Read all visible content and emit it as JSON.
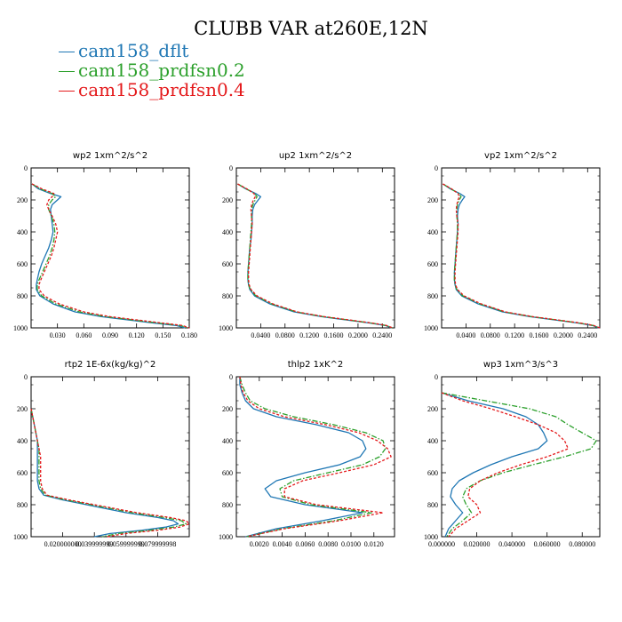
{
  "title": "CLUBB VAR at260E,12N",
  "colors": {
    "cam158_dflt": "#1f77b4",
    "cam158_prdfsn0.2": "#2ca02c",
    "cam158_prdfsn0.4": "#e41a1c"
  },
  "legend": [
    {
      "label": "cam158_dflt",
      "color": "#1f77b4",
      "dash": "solid"
    },
    {
      "label": "cam158_prdfsn0.2",
      "color": "#2ca02c",
      "dash": "dashdot"
    },
    {
      "label": "cam158_prdfsn0.4",
      "color": "#e41a1c",
      "dash": "dashed"
    }
  ],
  "chart_data": [
    {
      "type": "line",
      "title": "wp2 1xm^2/s^2",
      "xlim": [
        0,
        0.18
      ],
      "ylim": [
        1000,
        0
      ],
      "xticks": [
        "0.030",
        "0.060",
        "0.090",
        "0.120",
        "0.150",
        "0.180"
      ],
      "xtick_values": [
        0.03,
        0.06,
        0.09,
        0.12,
        0.15,
        0.18
      ],
      "yticks": [
        "0",
        "200",
        "400",
        "600",
        "800",
        "1000"
      ],
      "y": [
        100,
        130,
        160,
        180,
        200,
        230,
        260,
        300,
        350,
        400,
        450,
        500,
        550,
        600,
        650,
        700,
        730,
        760,
        800,
        850,
        900,
        930,
        950,
        970,
        985,
        1000
      ],
      "series": [
        {
          "name": "cam158_dflt",
          "x": [
            0.001,
            0.008,
            0.022,
            0.034,
            0.03,
            0.024,
            0.022,
            0.023,
            0.024,
            0.025,
            0.023,
            0.02,
            0.016,
            0.012,
            0.009,
            0.007,
            0.006,
            0.006,
            0.01,
            0.025,
            0.05,
            0.08,
            0.11,
            0.14,
            0.165,
            0.175
          ]
        },
        {
          "name": "cam158_prdfsn0.2",
          "x": [
            0.001,
            0.01,
            0.024,
            0.028,
            0.024,
            0.02,
            0.02,
            0.023,
            0.026,
            0.027,
            0.026,
            0.024,
            0.021,
            0.017,
            0.013,
            0.009,
            0.007,
            0.007,
            0.012,
            0.028,
            0.055,
            0.085,
            0.115,
            0.145,
            0.17,
            0.178
          ]
        },
        {
          "name": "cam158_prdfsn0.4",
          "x": [
            0.001,
            0.012,
            0.026,
            0.024,
            0.02,
            0.018,
            0.02,
            0.024,
            0.028,
            0.03,
            0.028,
            0.026,
            0.023,
            0.019,
            0.015,
            0.011,
            0.009,
            0.009,
            0.015,
            0.032,
            0.06,
            0.09,
            0.12,
            0.15,
            0.172,
            0.18
          ]
        }
      ]
    },
    {
      "type": "line",
      "title": "up2 1xm^2/s^2",
      "xlim": [
        0,
        0.26
      ],
      "ylim": [
        1000,
        0
      ],
      "xticks": [
        "0.0400",
        "0.0800",
        "0.1200",
        "0.1600",
        "0.2000",
        "0.2400"
      ],
      "xtick_values": [
        0.04,
        0.08,
        0.12,
        0.16,
        0.2,
        0.24
      ],
      "yticks": [
        "0",
        "200",
        "400",
        "600",
        "800",
        "1000"
      ],
      "y": [
        100,
        130,
        160,
        180,
        200,
        230,
        260,
        300,
        350,
        400,
        450,
        500,
        550,
        600,
        650,
        700,
        730,
        760,
        800,
        850,
        900,
        930,
        950,
        970,
        985,
        1000
      ],
      "series": [
        {
          "name": "cam158_dflt",
          "x": [
            0.002,
            0.015,
            0.032,
            0.04,
            0.036,
            0.03,
            0.027,
            0.026,
            0.026,
            0.025,
            0.024,
            0.022,
            0.021,
            0.02,
            0.019,
            0.019,
            0.02,
            0.022,
            0.03,
            0.055,
            0.095,
            0.14,
            0.18,
            0.22,
            0.245,
            0.255
          ]
        },
        {
          "name": "cam158_prdfsn0.2",
          "x": [
            0.002,
            0.016,
            0.03,
            0.034,
            0.031,
            0.027,
            0.025,
            0.025,
            0.025,
            0.024,
            0.023,
            0.022,
            0.021,
            0.02,
            0.019,
            0.019,
            0.02,
            0.023,
            0.032,
            0.058,
            0.098,
            0.143,
            0.183,
            0.222,
            0.246,
            0.256
          ]
        },
        {
          "name": "cam158_prdfsn0.4",
          "x": [
            0.002,
            0.017,
            0.029,
            0.031,
            0.028,
            0.025,
            0.024,
            0.025,
            0.026,
            0.025,
            0.024,
            0.023,
            0.022,
            0.021,
            0.02,
            0.02,
            0.021,
            0.024,
            0.034,
            0.06,
            0.1,
            0.145,
            0.185,
            0.224,
            0.247,
            0.257
          ]
        }
      ]
    },
    {
      "type": "line",
      "title": "vp2 1xm^2/s^2",
      "xlim": [
        0,
        0.26
      ],
      "ylim": [
        1000,
        0
      ],
      "xticks": [
        "0.0400",
        "0.0800",
        "0.1200",
        "0.1600",
        "0.2000",
        "0.2400"
      ],
      "xtick_values": [
        0.04,
        0.08,
        0.12,
        0.16,
        0.2,
        0.24
      ],
      "yticks": [
        "0",
        "200",
        "400",
        "600",
        "800",
        "1000"
      ],
      "y": [
        100,
        130,
        160,
        180,
        200,
        230,
        260,
        300,
        350,
        400,
        450,
        500,
        550,
        600,
        650,
        700,
        730,
        760,
        800,
        850,
        900,
        930,
        950,
        970,
        985,
        1000
      ],
      "series": [
        {
          "name": "cam158_dflt",
          "x": [
            0.002,
            0.014,
            0.03,
            0.038,
            0.034,
            0.029,
            0.027,
            0.026,
            0.027,
            0.026,
            0.025,
            0.024,
            0.023,
            0.022,
            0.021,
            0.021,
            0.022,
            0.024,
            0.033,
            0.06,
            0.1,
            0.145,
            0.185,
            0.225,
            0.248,
            0.258
          ]
        },
        {
          "name": "cam158_prdfsn0.2",
          "x": [
            0.002,
            0.015,
            0.028,
            0.032,
            0.029,
            0.026,
            0.025,
            0.025,
            0.026,
            0.026,
            0.025,
            0.024,
            0.023,
            0.022,
            0.021,
            0.021,
            0.022,
            0.025,
            0.035,
            0.063,
            0.103,
            0.148,
            0.188,
            0.227,
            0.249,
            0.259
          ]
        },
        {
          "name": "cam158_prdfsn0.4",
          "x": [
            0.002,
            0.016,
            0.027,
            0.029,
            0.027,
            0.025,
            0.024,
            0.025,
            0.027,
            0.027,
            0.026,
            0.025,
            0.024,
            0.023,
            0.022,
            0.022,
            0.023,
            0.026,
            0.037,
            0.065,
            0.105,
            0.15,
            0.19,
            0.229,
            0.25,
            0.26
          ]
        }
      ]
    },
    {
      "type": "line",
      "title": "rtp2 1E-6x(kg/kg)^2",
      "xlim": [
        0,
        0.1
      ],
      "ylim": [
        1000,
        0
      ],
      "xticks": [
        "0.020000000",
        "0.039999999",
        "0.059999999",
        "0.079999998"
      ],
      "xtick_values": [
        0.02,
        0.04,
        0.06,
        0.08
      ],
      "yticks": [
        "0",
        "200",
        "400",
        "600",
        "800",
        "1000"
      ],
      "y": [
        200,
        300,
        400,
        450,
        500,
        550,
        600,
        650,
        700,
        740,
        770,
        800,
        850,
        880,
        900,
        920,
        940,
        960,
        980,
        1000
      ],
      "series": [
        {
          "name": "cam158_dflt",
          "x": [
            0.0,
            0.002,
            0.004,
            0.004,
            0.004,
            0.004,
            0.004,
            0.004,
            0.005,
            0.008,
            0.02,
            0.035,
            0.06,
            0.08,
            0.09,
            0.093,
            0.085,
            0.07,
            0.05,
            0.04
          ]
        },
        {
          "name": "cam158_prdfsn0.2",
          "x": [
            0.0,
            0.002,
            0.004,
            0.005,
            0.005,
            0.005,
            0.005,
            0.005,
            0.006,
            0.009,
            0.022,
            0.038,
            0.064,
            0.084,
            0.095,
            0.098,
            0.09,
            0.075,
            0.055,
            0.045
          ]
        },
        {
          "name": "cam158_prdfsn0.4",
          "x": [
            0.0,
            0.002,
            0.004,
            0.005,
            0.006,
            0.006,
            0.006,
            0.006,
            0.007,
            0.01,
            0.024,
            0.04,
            0.067,
            0.088,
            0.098,
            0.1,
            0.094,
            0.08,
            0.06,
            0.048
          ]
        }
      ]
    },
    {
      "type": "line",
      "title": "thlp2 1xK^2",
      "xlim": [
        0,
        0.0138
      ],
      "ylim": [
        1000,
        0
      ],
      "xticks": [
        "0.0020",
        "0.0040",
        "0.0060",
        "0.0080",
        "0.0100",
        "0.0120"
      ],
      "xtick_values": [
        0.002,
        0.004,
        0.006,
        0.008,
        0.01,
        0.012
      ],
      "yticks": [
        "0",
        "200",
        "400",
        "600",
        "800",
        "1000"
      ],
      "y": [
        0,
        50,
        100,
        150,
        200,
        250,
        300,
        350,
        400,
        450,
        500,
        550,
        600,
        650,
        700,
        750,
        800,
        850,
        900,
        950,
        1000
      ],
      "series": [
        {
          "name": "cam158_dflt",
          "x": [
            0.0003,
            0.0003,
            0.0005,
            0.0008,
            0.0015,
            0.0035,
            0.007,
            0.0098,
            0.011,
            0.0113,
            0.0108,
            0.009,
            0.006,
            0.0035,
            0.0025,
            0.003,
            0.006,
            0.011,
            0.0075,
            0.0035,
            0.0008
          ]
        },
        {
          "name": "cam158_prdfsn0.2",
          "x": [
            0.0003,
            0.0005,
            0.0008,
            0.0012,
            0.0025,
            0.005,
            0.0085,
            0.0113,
            0.0128,
            0.013,
            0.0125,
            0.011,
            0.008,
            0.005,
            0.0038,
            0.004,
            0.0065,
            0.0118,
            0.0085,
            0.004,
            0.0009
          ]
        },
        {
          "name": "cam158_prdfsn0.4",
          "x": [
            0.0003,
            0.0004,
            0.0006,
            0.001,
            0.002,
            0.0042,
            0.0078,
            0.0107,
            0.0123,
            0.0132,
            0.0135,
            0.012,
            0.009,
            0.0058,
            0.0042,
            0.0042,
            0.007,
            0.0128,
            0.009,
            0.0042,
            0.0009
          ]
        }
      ]
    },
    {
      "type": "line",
      "title": "wp3 1xm^3/s^3",
      "xlim": [
        0,
        0.09
      ],
      "ylim": [
        1000,
        0
      ],
      "xticks": [
        "0.000000",
        "0.020000",
        "0.040000",
        "0.060000",
        "0.080000"
      ],
      "xtick_values": [
        0,
        0.02,
        0.04,
        0.06,
        0.08
      ],
      "yticks": [
        "0",
        "200",
        "400",
        "600",
        "800",
        "1000"
      ],
      "y": [
        100,
        150,
        200,
        250,
        300,
        350,
        400,
        450,
        500,
        550,
        600,
        650,
        700,
        750,
        800,
        850,
        900,
        950,
        1000
      ],
      "series": [
        {
          "name": "cam158_dflt",
          "x": [
            0.0,
            0.015,
            0.035,
            0.048,
            0.055,
            0.058,
            0.06,
            0.055,
            0.04,
            0.028,
            0.018,
            0.01,
            0.006,
            0.005,
            0.008,
            0.012,
            0.008,
            0.004,
            0.002
          ]
        },
        {
          "name": "cam158_prdfsn0.2",
          "x": [
            0.0,
            0.025,
            0.05,
            0.065,
            0.072,
            0.08,
            0.088,
            0.085,
            0.07,
            0.052,
            0.035,
            0.022,
            0.014,
            0.012,
            0.014,
            0.017,
            0.012,
            0.006,
            0.003
          ]
        },
        {
          "name": "cam158_prdfsn0.4",
          "x": [
            0.0,
            0.012,
            0.028,
            0.042,
            0.055,
            0.065,
            0.07,
            0.072,
            0.06,
            0.045,
            0.032,
            0.022,
            0.016,
            0.015,
            0.02,
            0.022,
            0.015,
            0.008,
            0.004
          ]
        }
      ]
    }
  ]
}
